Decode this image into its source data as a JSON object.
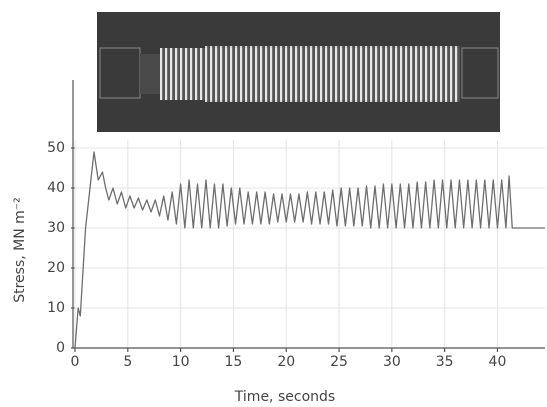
{
  "chart_data": {
    "type": "line",
    "xlabel": "Time, seconds",
    "ylabel": "Stress, MN m⁻²",
    "x": [
      0,
      0.3,
      0.5,
      1.0,
      1.8,
      2.2,
      2.6,
      2.9,
      3.2,
      3.6,
      4.0,
      4.4,
      4.8,
      5.2,
      5.6,
      6.0,
      6.4,
      6.8,
      7.2,
      7.6,
      8.0,
      8.4,
      8.8,
      9.2,
      9.6,
      10.0,
      10.4,
      10.8,
      11.2,
      11.6,
      12.0,
      12.4,
      12.8,
      13.2,
      13.6,
      14.0,
      14.4,
      14.8,
      15.2,
      15.6,
      16.0,
      16.4,
      16.8,
      17.2,
      17.6,
      18.0,
      18.4,
      18.8,
      19.2,
      19.6,
      20.0,
      20.4,
      20.8,
      21.2,
      21.6,
      22.0,
      22.4,
      22.8,
      23.2,
      23.6,
      24.0,
      24.4,
      24.8,
      25.2,
      25.6,
      26.0,
      26.4,
      26.8,
      27.2,
      27.6,
      28.0,
      28.4,
      28.8,
      29.2,
      29.6,
      30.0,
      30.4,
      30.8,
      31.2,
      31.6,
      32.0,
      32.4,
      32.8,
      33.2,
      33.6,
      34.0,
      34.4,
      34.8,
      35.2,
      35.6,
      36.0,
      36.4,
      36.8,
      37.2,
      37.6,
      38.0,
      38.4,
      38.8,
      39.2,
      39.6,
      40.0,
      40.4,
      40.8,
      41.1,
      41.4,
      44.5
    ],
    "values": [
      0,
      10,
      8,
      30,
      49,
      42,
      44,
      40,
      37,
      40,
      36,
      39,
      35,
      38,
      35,
      37.5,
      34.5,
      37,
      34,
      37,
      33,
      38,
      32,
      39,
      31,
      41,
      30,
      42,
      30,
      41,
      30,
      42,
      30,
      41,
      30,
      41,
      30.5,
      40,
      31,
      40,
      31,
      39,
      31,
      39,
      31,
      39,
      31,
      38.5,
      31.5,
      38.5,
      31.5,
      38.5,
      31.5,
      38.5,
      31.5,
      39,
      31,
      39,
      31,
      39,
      31,
      39.5,
      30.5,
      40,
      30.5,
      40,
      30.5,
      40,
      30.5,
      40.5,
      30,
      40.5,
      30,
      41,
      30,
      41,
      30,
      41,
      30,
      41,
      30,
      41.5,
      30,
      41.5,
      30,
      42,
      30,
      42,
      30,
      42,
      30,
      42,
      30,
      42,
      30,
      42,
      30,
      42,
      30,
      42,
      30,
      42,
      30,
      43,
      30,
      30
    ],
    "color": "#6e6e6e",
    "xlim": [
      0,
      44.5
    ],
    "xticks": [
      0,
      5,
      10,
      15,
      20,
      25,
      30,
      35,
      40
    ],
    "ylim": [
      0,
      67
    ],
    "yticks": [
      0,
      10,
      20,
      30,
      40,
      50
    ],
    "grid": true
  }
}
